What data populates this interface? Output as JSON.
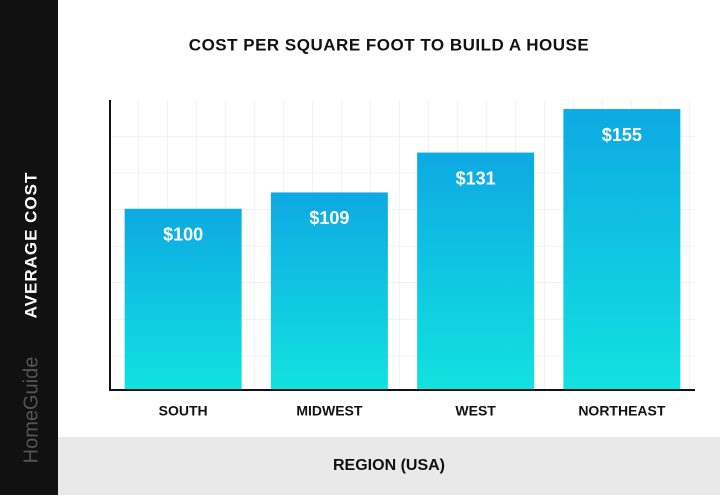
{
  "brand": "HomeGuide",
  "chart_data": {
    "type": "bar",
    "title": "COST PER SQUARE FOOT TO BUILD A HOUSE",
    "x_label": "REGION (USA)",
    "y_label": "AVERAGE COST",
    "categories": [
      "SOUTH",
      "MIDWEST",
      "WEST",
      "NORTHEAST"
    ],
    "values": [
      100,
      109,
      131,
      155
    ],
    "value_labels": [
      "$100",
      "$109",
      "$131",
      "$155"
    ],
    "color": "#0ea9e3",
    "ylim": [
      0,
      160
    ],
    "grid": true
  }
}
